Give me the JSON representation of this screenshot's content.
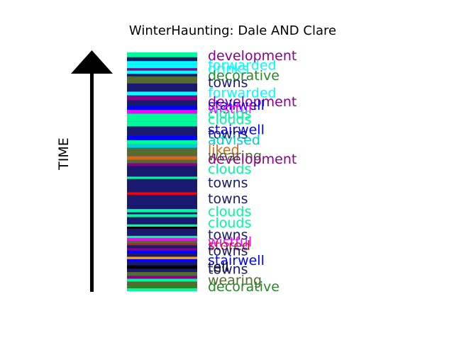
{
  "chart_data": {
    "type": "bar",
    "title": "WinterHaunting: Dale AND Clare",
    "ylabel": "TIME",
    "ylim": [
      0,
      1
    ],
    "colors": {
      "development": "#8b008b",
      "forwarded": "#00ffff",
      "drinks": "#00ffff",
      "decorative": "#228b22",
      "towns": "#191970",
      "stairwell": "#0000ff",
      "wistful": "#ff00ff",
      "clouds": "#00fa9a",
      "advised": "#00ced1",
      "liked": "#d2691e",
      "wearing": "#556b2f",
      "stored": "#a52a2a",
      "red": "#ff0000",
      "black": "#000000",
      "orange": "#ffa500"
    },
    "bands": [
      {
        "c": "clouds",
        "y": 0.0
      },
      {
        "c": "decorative",
        "y": 0.012
      },
      {
        "c": "wearing",
        "y": 0.024
      },
      {
        "c": "clouds",
        "y": 0.04
      },
      {
        "c": "development",
        "y": 0.052
      },
      {
        "c": "wearing",
        "y": 0.064
      },
      {
        "c": "towns",
        "y": 0.08
      },
      {
        "c": "black",
        "y": 0.094
      },
      {
        "c": "towns",
        "y": 0.108
      },
      {
        "c": "stairwell",
        "y": 0.124
      },
      {
        "c": "orange",
        "y": 0.134
      },
      {
        "c": "towns",
        "y": 0.144
      },
      {
        "c": "stairwell",
        "y": 0.158
      },
      {
        "c": "development",
        "y": 0.17
      },
      {
        "c": "towns",
        "y": 0.18
      },
      {
        "c": "stored",
        "y": 0.192
      },
      {
        "c": "wearing",
        "y": 0.2
      },
      {
        "c": "wistful",
        "y": 0.21
      },
      {
        "c": "clouds",
        "y": 0.222
      },
      {
        "c": "towns",
        "y": 0.232
      },
      {
        "c": "black",
        "y": 0.262
      },
      {
        "c": "clouds",
        "y": 0.27
      },
      {
        "c": "towns",
        "y": 0.28
      },
      {
        "c": "clouds",
        "y": 0.31
      },
      {
        "c": "towns",
        "y": 0.322
      },
      {
        "c": "clouds",
        "y": 0.33
      },
      {
        "c": "towns",
        "y": 0.344
      },
      {
        "c": "towns",
        "y": 0.36
      },
      {
        "c": "red",
        "y": 0.404
      },
      {
        "c": "towns",
        "y": 0.414
      },
      {
        "c": "towns",
        "y": 0.44
      },
      {
        "c": "clouds",
        "y": 0.47
      },
      {
        "c": "towns",
        "y": 0.48
      },
      {
        "c": "development",
        "y": 0.524
      },
      {
        "c": "wearing",
        "y": 0.536
      },
      {
        "c": "liked",
        "y": 0.55
      },
      {
        "c": "wearing",
        "y": 0.566
      },
      {
        "c": "advised",
        "y": 0.6
      },
      {
        "c": "clouds",
        "y": 0.616
      },
      {
        "c": "stairwell",
        "y": 0.632
      },
      {
        "c": "towns",
        "y": 0.65
      },
      {
        "c": "clouds",
        "y": 0.69
      },
      {
        "c": "clouds",
        "y": 0.71
      },
      {
        "c": "wistful",
        "y": 0.744
      },
      {
        "c": "stairwell",
        "y": 0.76
      },
      {
        "c": "towns",
        "y": 0.776
      },
      {
        "c": "development",
        "y": 0.8
      },
      {
        "c": "forwarded",
        "y": 0.82
      },
      {
        "c": "towns",
        "y": 0.836
      },
      {
        "c": "towns",
        "y": 0.856
      },
      {
        "c": "wearing",
        "y": 0.87
      },
      {
        "c": "towns",
        "y": 0.9
      },
      {
        "c": "drinks",
        "y": 0.91
      },
      {
        "c": "development",
        "y": 0.924
      },
      {
        "c": "drinks",
        "y": 0.934
      },
      {
        "c": "forwarded",
        "y": 0.95
      },
      {
        "c": "towns",
        "y": 0.964
      },
      {
        "c": "clouds",
        "y": 0.98
      }
    ],
    "labels": [
      {
        "text": "development",
        "c": "development",
        "y": 0.985
      },
      {
        "text": "forwarded",
        "c": "forwarded",
        "y": 0.945
      },
      {
        "text": "drinks",
        "c": "drinks",
        "y": 0.93
      },
      {
        "text": "decorative",
        "c": "decorative",
        "y": 0.902
      },
      {
        "text": "towns",
        "c": "towns",
        "y": 0.872
      },
      {
        "text": "forwarded",
        "c": "forwarded",
        "y": 0.83
      },
      {
        "text": "development",
        "c": "development",
        "y": 0.793
      },
      {
        "text": "stairwell",
        "c": "stairwell",
        "y": 0.778
      },
      {
        "text": "wistful",
        "c": "wistful",
        "y": 0.762
      },
      {
        "text": "clouds",
        "c": "clouds",
        "y": 0.742
      },
      {
        "text": "clouds",
        "c": "clouds",
        "y": 0.718
      },
      {
        "text": "stairwell",
        "c": "stairwell",
        "y": 0.675
      },
      {
        "text": "towns",
        "c": "towns",
        "y": 0.657
      },
      {
        "text": "advised",
        "c": "advised",
        "y": 0.632
      },
      {
        "text": "liked",
        "c": "liked",
        "y": 0.59
      },
      {
        "text": "wearing",
        "c": "wearing",
        "y": 0.566
      },
      {
        "text": "development",
        "c": "development",
        "y": 0.552
      },
      {
        "text": "clouds",
        "c": "clouds",
        "y": 0.51
      },
      {
        "text": "towns",
        "c": "towns",
        "y": 0.453
      },
      {
        "text": "towns",
        "c": "towns",
        "y": 0.386
      },
      {
        "text": "clouds",
        "c": "clouds",
        "y": 0.332
      },
      {
        "text": "clouds",
        "c": "clouds",
        "y": 0.285
      },
      {
        "text": "towns",
        "c": "towns",
        "y": 0.235
      },
      {
        "text": "wistful",
        "c": "wistful",
        "y": 0.205
      },
      {
        "text": "stored",
        "c": "stored",
        "y": 0.19
      },
      {
        "text": "towns",
        "c": "towns",
        "y": 0.168
      },
      {
        "text": "stairwell",
        "c": "stairwell",
        "y": 0.128
      },
      {
        "text": "tell",
        "c": "black",
        "y": 0.1
      },
      {
        "text": "towns",
        "c": "towns",
        "y": 0.09
      },
      {
        "text": "wearing",
        "c": "wearing",
        "y": 0.045
      },
      {
        "text": "decorative",
        "c": "decorative",
        "y": 0.018
      }
    ]
  }
}
